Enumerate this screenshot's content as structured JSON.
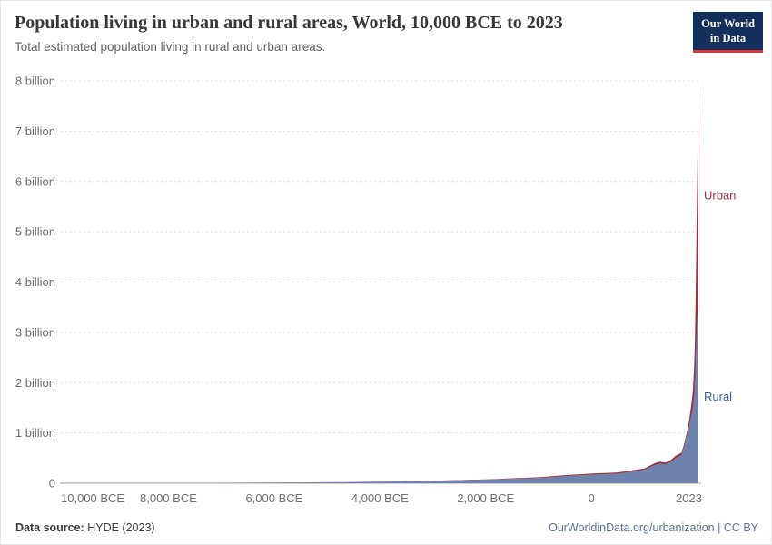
{
  "header": {
    "title": "Population living in urban and rural areas, World, 10,000 BCE to 2023",
    "subtitle": "Total estimated population living in rural and urban areas.",
    "logo": {
      "line1": "Our World",
      "line2": "in Data",
      "bg": "#12305a",
      "accent": "#e0363f"
    }
  },
  "chart_data": {
    "type": "area",
    "stacked": true,
    "title": "Population living in urban and rural areas, World, 10,000 BCE to 2023",
    "xlabel": "",
    "ylabel": "",
    "xlim": [
      -10000,
      2023
    ],
    "ylim": [
      0,
      8
    ],
    "grid": "horizontal-dashed",
    "grid_color": "#dcdcdc",
    "axis_color": "#a3a3a3",
    "x": [
      -10000,
      -9000,
      -8000,
      -7000,
      -6000,
      -5000,
      -4000,
      -3000,
      -2000,
      -1000,
      -500,
      0,
      500,
      1000,
      1200,
      1300,
      1400,
      1500,
      1600,
      1700,
      1750,
      1800,
      1850,
      1900,
      1920,
      1940,
      1950,
      1960,
      1970,
      1980,
      1990,
      2000,
      2010,
      2015,
      2023
    ],
    "series": [
      {
        "name": "Rural",
        "color": "#6e82ae",
        "label_color": "#41619e",
        "unit": "billion",
        "values": [
          0.004,
          0.004,
          0.005,
          0.007,
          0.011,
          0.018,
          0.028,
          0.044,
          0.07,
          0.105,
          0.14,
          0.17,
          0.19,
          0.265,
          0.36,
          0.39,
          0.37,
          0.42,
          0.5,
          0.55,
          0.71,
          0.92,
          1.13,
          1.39,
          1.5,
          1.71,
          1.79,
          2.0,
          2.33,
          2.69,
          3.03,
          3.27,
          3.35,
          3.41,
          3.43
        ]
      },
      {
        "name": "Urban",
        "color": "#96343f",
        "label_color": "#9e2f3f",
        "unit": "billion",
        "values": [
          0,
          0,
          0,
          0,
          0.001,
          0.001,
          0.002,
          0.004,
          0.008,
          0.015,
          0.02,
          0.022,
          0.025,
          0.03,
          0.04,
          0.04,
          0.038,
          0.043,
          0.05,
          0.055,
          0.06,
          0.07,
          0.13,
          0.26,
          0.36,
          0.59,
          0.75,
          1.02,
          1.35,
          1.75,
          2.29,
          2.87,
          3.6,
          3.97,
          4.58
        ]
      }
    ],
    "x_ticks": [
      {
        "value": -10000,
        "label": "10,000 BCE"
      },
      {
        "value": -8000,
        "label": "8,000 BCE"
      },
      {
        "value": -6000,
        "label": "6,000 BCE"
      },
      {
        "value": -4000,
        "label": "4,000 BCE"
      },
      {
        "value": -2000,
        "label": "2,000 BCE"
      },
      {
        "value": 0,
        "label": "0"
      },
      {
        "value": 2023,
        "label": "2023"
      }
    ],
    "y_ticks": [
      {
        "value": 0,
        "label": "0"
      },
      {
        "value": 1,
        "label": "1 billion"
      },
      {
        "value": 2,
        "label": "2 billion"
      },
      {
        "value": 3,
        "label": "3 billion"
      },
      {
        "value": 4,
        "label": "4 billion"
      },
      {
        "value": 5,
        "label": "5 billion"
      },
      {
        "value": 6,
        "label": "6 billion"
      },
      {
        "value": 7,
        "label": "7 billion"
      },
      {
        "value": 8,
        "label": "8 billion"
      }
    ],
    "legend_position": "right-edge-labels"
  },
  "footer": {
    "source_label": "Data source:",
    "source_value": "HYDE (2023)",
    "credit": "OurWorldinData.org/urbanization | CC BY"
  }
}
